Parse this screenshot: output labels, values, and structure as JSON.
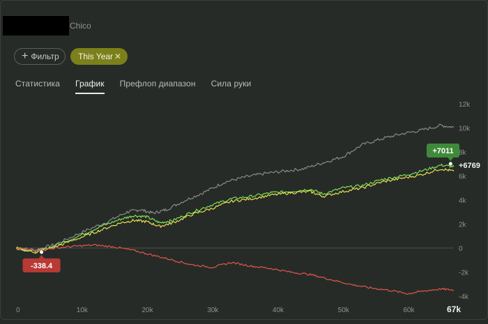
{
  "window": {
    "title": "Chico"
  },
  "filters": {
    "add_label": "Фильтр",
    "active_label": "This Year"
  },
  "tabs": [
    {
      "label": "Статистика"
    },
    {
      "label": "График"
    },
    {
      "label": "Префлоп диапазон"
    },
    {
      "label": "Сила руки"
    }
  ],
  "active_tab": "График",
  "chart_data": {
    "type": "line",
    "x_ticks": [
      "0",
      "10k",
      "20k",
      "30k",
      "40k",
      "50k",
      "60k",
      "67k"
    ],
    "x_tick_values": [
      0,
      10000,
      20000,
      30000,
      40000,
      50000,
      60000,
      67000
    ],
    "y_ticks": [
      "12k",
      "10k",
      "8k",
      "6k",
      "4k",
      "2k",
      "0",
      "-2k",
      "-4k"
    ],
    "y_tick_values": [
      12000,
      10000,
      8000,
      6000,
      4000,
      2000,
      0,
      -2000,
      -4000
    ],
    "xlim": [
      0,
      67000
    ],
    "ylim": [
      -4000,
      12000
    ],
    "series": [
      {
        "color": "#8a8a8a",
        "x": [
          0,
          3000,
          6000,
          10000,
          14000,
          17000,
          19000,
          21000,
          23000,
          26000,
          29000,
          32000,
          35000,
          38000,
          41000,
          44000,
          47000,
          50000,
          53000,
          56000,
          59000,
          62000,
          65000,
          67000
        ],
        "y": [
          0,
          -150,
          300,
          1300,
          2200,
          3000,
          3200,
          2900,
          3200,
          4000,
          4700,
          5500,
          5900,
          6200,
          6400,
          6600,
          7100,
          7600,
          8600,
          9100,
          9500,
          9800,
          10200,
          10050
        ]
      },
      {
        "color": "#7ee05a",
        "x": [
          0,
          3000,
          6000,
          10000,
          13000,
          16000,
          18000,
          20000,
          22000,
          24000,
          27000,
          30000,
          33000,
          36000,
          39000,
          42000,
          45000,
          47000,
          50000,
          53000,
          56000,
          59000,
          62000,
          65000,
          67000
        ],
        "y": [
          0,
          -300,
          200,
          1100,
          1800,
          2400,
          2700,
          2600,
          2100,
          2300,
          3000,
          3600,
          4100,
          4300,
          4600,
          4700,
          4900,
          4500,
          5000,
          5200,
          5700,
          6000,
          6400,
          6900,
          6769
        ]
      },
      {
        "color": "#e8e050",
        "x": [
          0,
          3000,
          6000,
          10000,
          13000,
          16000,
          18000,
          20000,
          22000,
          24000,
          27000,
          30000,
          33000,
          36000,
          39000,
          42000,
          45000,
          47000,
          50000,
          53000,
          56000,
          59000,
          62000,
          65000,
          67000
        ],
        "y": [
          0,
          -350,
          100,
          900,
          1500,
          2100,
          2300,
          2200,
          1800,
          2100,
          2800,
          3300,
          3900,
          4100,
          4400,
          4600,
          4700,
          4300,
          4700,
          5000,
          5500,
          5800,
          6100,
          6600,
          6400
        ]
      },
      {
        "color": "#e0564e",
        "x": [
          0,
          3000,
          6000,
          9000,
          12000,
          15000,
          18000,
          21000,
          24000,
          27000,
          30000,
          33000,
          36000,
          39000,
          42000,
          45000,
          48000,
          51000,
          54000,
          57000,
          60000,
          62000,
          65000,
          67000
        ],
        "y": [
          0,
          -200,
          0,
          150,
          250,
          100,
          -200,
          -600,
          -1000,
          -1400,
          -1600,
          -1200,
          -1500,
          -1700,
          -2000,
          -2200,
          -2600,
          -3000,
          -3300,
          -3500,
          -3800,
          -3600,
          -3400,
          -3500
        ]
      }
    ],
    "annotations": [
      {
        "text": "-338.4",
        "x": 3900,
        "y": -338.4,
        "color": "#b83a34"
      },
      {
        "text": "+7011",
        "x": 66500,
        "y": 7011,
        "color": "#3f8a3a"
      }
    ],
    "end_label": "+6769",
    "end_value": 6769
  }
}
